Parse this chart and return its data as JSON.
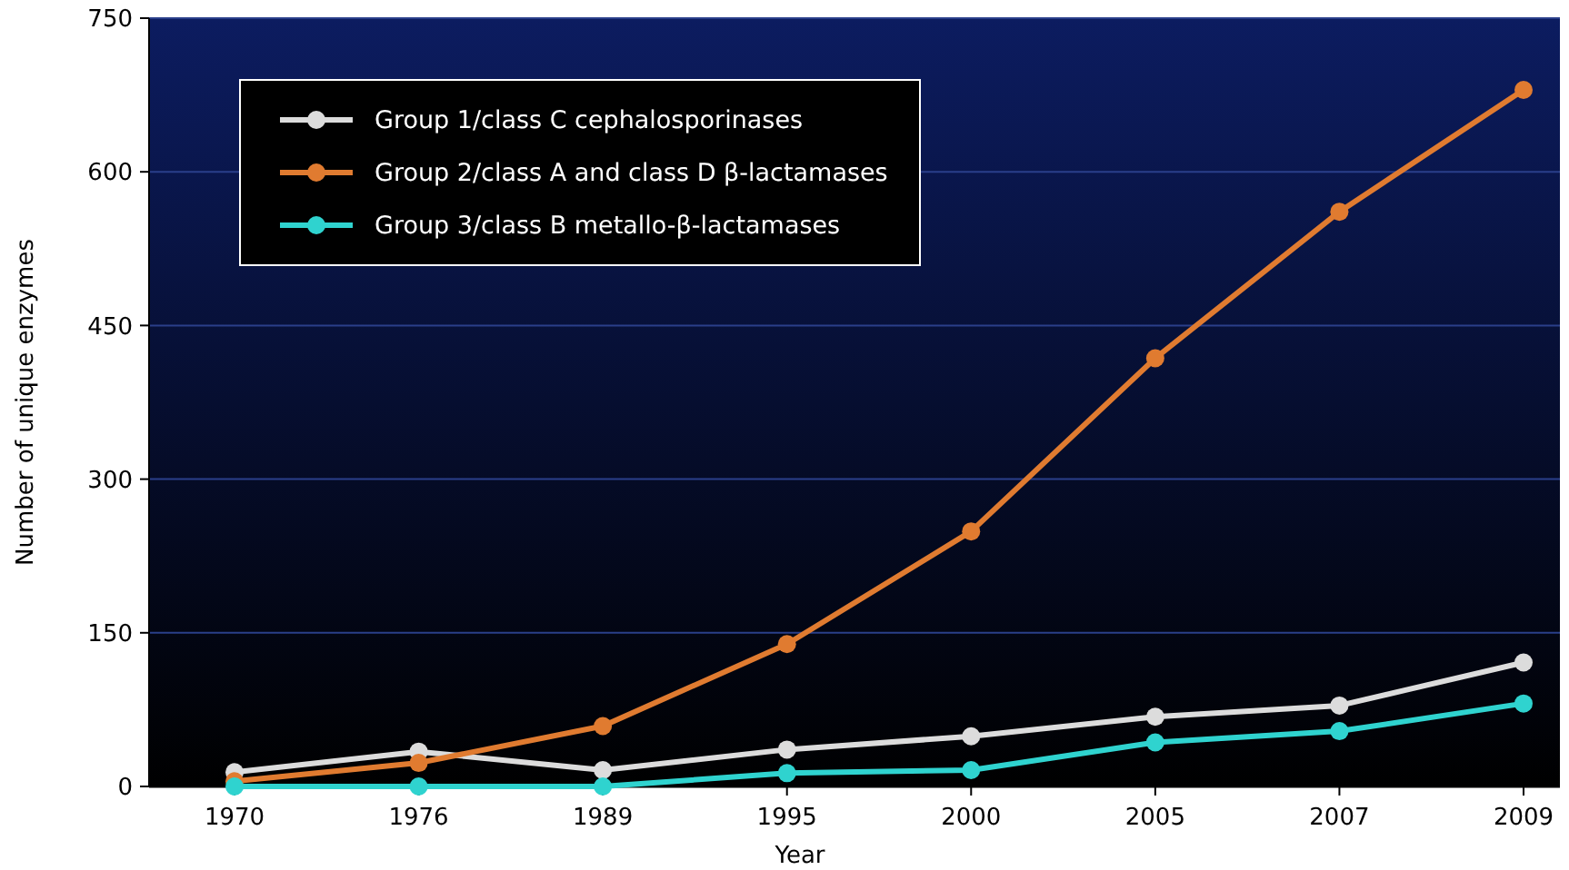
{
  "chart_data": {
    "type": "line",
    "xlabel": "Year",
    "ylabel": "Number of unique enzymes",
    "categories": [
      "1970",
      "1976",
      "1989",
      "1995",
      "2000",
      "2005",
      "2007",
      "2009"
    ],
    "series": [
      {
        "name": "Group 1/class C cephalosporinases",
        "color": "#dcdcdc",
        "values": [
          14,
          34,
          16,
          36,
          49,
          68,
          79,
          121
        ]
      },
      {
        "name": "Group 2/class A and class D β-lactamases",
        "color": "#e07b30",
        "values": [
          5,
          23,
          59,
          139,
          249,
          418,
          561,
          680
        ]
      },
      {
        "name": "Group 3/class B metallo-β-lactamases",
        "color": "#2fd3cf",
        "values": [
          0,
          0,
          0,
          13,
          16,
          43,
          54,
          81
        ]
      }
    ],
    "ylim": [
      0,
      750
    ],
    "yticks": [
      0,
      150,
      300,
      450,
      600,
      750
    ],
    "grid": "y",
    "legend": "top left",
    "marker": "circle",
    "line_style": "solid"
  }
}
